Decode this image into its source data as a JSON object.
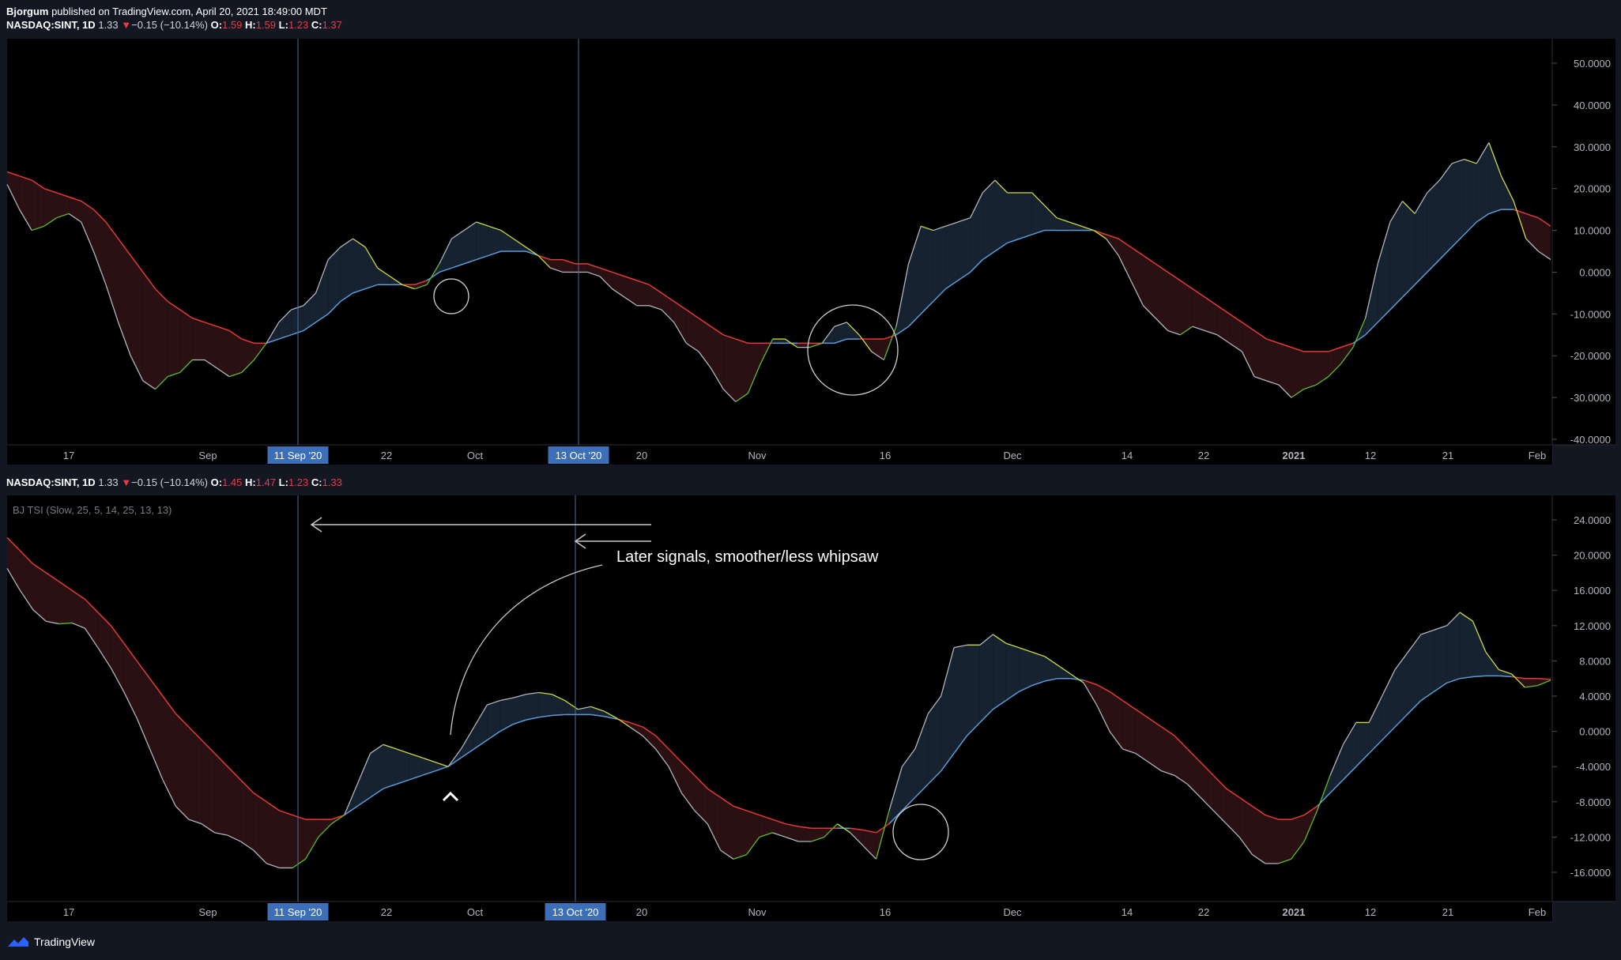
{
  "header": {
    "author": "Bjorgum",
    "published": "published on TradingView.com, April 20, 2021 18:49:00 MDT"
  },
  "pane1": {
    "symbol": "NASDAQ:SINT, 1D",
    "price": "1.33",
    "change": "−0.15 (−10.14%)",
    "o_label": "O:",
    "o": "1.59",
    "h_label": "H:",
    "h": "1.59",
    "l_label": "L:",
    "l": "1.23",
    "c_label": "C:",
    "c": "1.37"
  },
  "pane2": {
    "symbol": "NASDAQ:SINT, 1D",
    "price": "1.33",
    "change": "−0.15 (−10.14%)",
    "o_label": "O:",
    "o": "1.45",
    "h_label": "H:",
    "h": "1.47",
    "l_label": "L:",
    "l": "1.23",
    "c_label": "C:",
    "c": "1.33",
    "indicator_label": "BJ TSI (Slow, 25, 5, 14, 25, 13, 13)",
    "annotation": "Later signals, smoother/less whipsaw"
  },
  "brand": "TradingView",
  "colors": {
    "background": "#131722",
    "tsi_up": "#cddc39",
    "tsi_down": "#5bbd2b",
    "tsi_neutral": "#b2b5be",
    "signal_bull": "#5b9bd5",
    "signal_bear": "#e53935",
    "fill_bull": "#16222f",
    "fill_bear": "#2a1012",
    "vline": "#4a6fa5",
    "date_box": "#3c6fb8"
  },
  "chart_data": [
    {
      "type": "line",
      "title": "",
      "x_ticks": [
        "17",
        "Sep",
        "22",
        "Oct",
        "20",
        "Nov",
        "16",
        "Dec",
        "14",
        "22",
        "2021",
        "12",
        "21",
        "Feb"
      ],
      "highlighted_dates": [
        "11 Sep '20",
        "13 Oct '20"
      ],
      "ylim": [
        -40,
        55
      ],
      "y_ticks": [
        "50.0000",
        "40.0000",
        "30.0000",
        "20.0000",
        "10.0000",
        "0.0000",
        "-10.0000",
        "-20.0000",
        "-30.0000",
        "-40.0000"
      ],
      "series": [
        {
          "values": [
            21,
            15,
            10,
            11,
            13,
            14,
            12,
            5,
            -3,
            -12,
            -20,
            -26,
            -28,
            -25,
            -24,
            -21,
            -21,
            -23,
            -25,
            -24,
            -21,
            -17,
            -12,
            -9,
            -8,
            -5,
            3,
            6,
            8,
            6,
            1,
            -1,
            -3,
            -4,
            -3,
            2,
            8,
            10,
            12,
            11,
            10,
            8,
            6,
            4,
            1,
            0,
            0,
            0,
            -1,
            -4,
            -6,
            -8,
            -8,
            -9,
            -12,
            -17,
            -19,
            -23,
            -28,
            -31,
            -29,
            -22,
            -16,
            -16,
            -18,
            -18,
            -17,
            -13,
            -12,
            -15,
            -19,
            -21,
            -13,
            2,
            11,
            10,
            11,
            12,
            13,
            19,
            22,
            19,
            19,
            19,
            16,
            13,
            12,
            11,
            10,
            8,
            4,
            -2,
            -8,
            -11,
            -14,
            -15,
            -13,
            -14,
            -15,
            -17,
            -19,
            -25,
            -26,
            -27,
            -30,
            -28,
            -27,
            -25,
            -22,
            -18,
            -11,
            2,
            12,
            17,
            14,
            19,
            22,
            26,
            27,
            26,
            31,
            23,
            17,
            8,
            5,
            3
          ]
        },
        {
          "values": [
            24,
            23,
            22,
            20,
            19,
            18,
            17,
            15,
            12,
            8,
            4,
            0,
            -4,
            -7,
            -9,
            -11,
            -12,
            -13,
            -14,
            -16,
            -17,
            -17,
            -16,
            -15,
            -14,
            -12,
            -10,
            -7,
            -5,
            -4,
            -3,
            -3,
            -3,
            -3,
            -2,
            0,
            1,
            2,
            3,
            4,
            5,
            5,
            5,
            4,
            3,
            3,
            2,
            2,
            1,
            0,
            -1,
            -2,
            -3,
            -5,
            -7,
            -9,
            -11,
            -13,
            -15,
            -16,
            -17,
            -17,
            -17,
            -17,
            -17,
            -17,
            -17,
            -17,
            -16,
            -16,
            -16,
            -16,
            -15,
            -13,
            -10,
            -7,
            -4,
            -2,
            0,
            3,
            5,
            7,
            8,
            9,
            10,
            10,
            10,
            10,
            10,
            9,
            8,
            6,
            4,
            2,
            0,
            -2,
            -4,
            -6,
            -8,
            -10,
            -12,
            -14,
            -16,
            -17,
            -18,
            -19,
            -19,
            -19,
            -18,
            -17,
            -15,
            -12,
            -9,
            -6,
            -3,
            0,
            3,
            6,
            9,
            12,
            14,
            15,
            15,
            14,
            13,
            11
          ]
        }
      ]
    },
    {
      "type": "line",
      "title": "",
      "x_ticks": [
        "17",
        "Sep",
        "22",
        "Oct",
        "20",
        "Nov",
        "16",
        "Dec",
        "14",
        "22",
        "2021",
        "12",
        "21",
        "Feb"
      ],
      "highlighted_dates": [
        "11 Sep '20",
        "13 Oct '20"
      ],
      "ylim": [
        -19.5,
        26
      ],
      "y_ticks": [
        "24.0000",
        "20.0000",
        "16.0000",
        "12.0000",
        "8.0000",
        "4.0000",
        "0.0000",
        "-4.0000",
        "-8.0000",
        "-12.0000",
        "-16.0000"
      ],
      "series": [
        {
          "values": [
            18.5,
            16,
            13.8,
            12.5,
            12.2,
            12.3,
            11.7,
            9.5,
            7.2,
            4.5,
            1.5,
            -2,
            -5.5,
            -8.5,
            -10,
            -10.5,
            -11.5,
            -11.8,
            -12.5,
            -13.5,
            -15,
            -15.5,
            -15.5,
            -14.5,
            -12,
            -10.5,
            -9.5,
            -6,
            -2.5,
            -1.5,
            -2,
            -2.5,
            -3,
            -3.5,
            -4,
            -2,
            0.5,
            3,
            3.5,
            3.8,
            4.2,
            4.4,
            4.2,
            3.5,
            2.5,
            2.8,
            2.3,
            1.5,
            0.5,
            -0.5,
            -2,
            -4,
            -7,
            -9,
            -10.5,
            -13.5,
            -14.5,
            -14,
            -12,
            -11.5,
            -12,
            -12.5,
            -12.5,
            -12,
            -10.5,
            -11.5,
            -13,
            -14.5,
            -9,
            -4,
            -2,
            2,
            4,
            9.5,
            9.8,
            9.8,
            11,
            10,
            9.5,
            9,
            8.5,
            7.5,
            6.5,
            5.5,
            3,
            0,
            -2,
            -2.5,
            -3.5,
            -4.5,
            -5,
            -6,
            -7.5,
            -9,
            -10.5,
            -12,
            -14,
            -15,
            -15,
            -14.5,
            -12.5,
            -9,
            -5,
            -1.5,
            1,
            1,
            4,
            7,
            9,
            11,
            11.5,
            12,
            13.5,
            12.5,
            9,
            7,
            6.5,
            5,
            5.2,
            5.8
          ]
        },
        {
          "values": [
            22,
            20.5,
            19,
            18,
            17,
            16,
            15,
            13.5,
            12,
            10,
            8,
            6,
            4,
            2,
            0.5,
            -1,
            -2.5,
            -4,
            -5.5,
            -7,
            -8,
            -9,
            -9.5,
            -10,
            -10,
            -10,
            -9.5,
            -8.5,
            -7.5,
            -6.5,
            -6,
            -5.5,
            -5,
            -4.5,
            -4,
            -3,
            -2,
            -1,
            0,
            0.8,
            1.3,
            1.6,
            1.8,
            1.9,
            1.9,
            1.9,
            1.7,
            1.4,
            1,
            0.5,
            -0.5,
            -2,
            -3.5,
            -5,
            -6.5,
            -7.5,
            -8.5,
            -9,
            -9.5,
            -10,
            -10.5,
            -10.8,
            -11,
            -11,
            -11,
            -11,
            -11.2,
            -11.5,
            -10.5,
            -9,
            -7.5,
            -6,
            -4.5,
            -2.5,
            -0.5,
            1,
            2.5,
            3.5,
            4.5,
            5.2,
            5.7,
            6,
            6,
            5.8,
            5.3,
            4.5,
            3.5,
            2.5,
            1.5,
            0.5,
            -0.5,
            -2,
            -3.5,
            -5,
            -6.5,
            -7.5,
            -8.5,
            -9.5,
            -10,
            -10,
            -9.5,
            -8.5,
            -7,
            -5.5,
            -4,
            -2.5,
            -1,
            0.5,
            2,
            3.5,
            4.5,
            5.5,
            6,
            6.2,
            6.3,
            6.3,
            6.2,
            6,
            6,
            5.9
          ]
        }
      ]
    }
  ]
}
